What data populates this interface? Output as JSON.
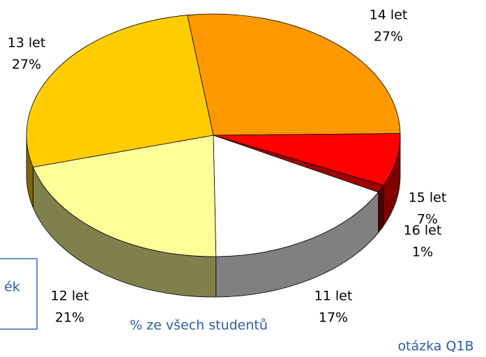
{
  "chart_data": {
    "type": "pie3d",
    "subtitle": "% ze všech studentů",
    "footnote": "otázka Q1B",
    "box_text": "ék",
    "categories": [
      "14 let",
      "15 let",
      "16 let",
      "11 let",
      "12 let",
      "13 let"
    ],
    "values": [
      27,
      7,
      1,
      17,
      21,
      27
    ],
    "value_labels": [
      "27%",
      "7%",
      "1%",
      "17%",
      "21%",
      "27%"
    ],
    "colors": [
      "#ff9900",
      "#ff0000",
      "#a00000",
      "#ffffff",
      "#ffff99",
      "#ffcc00"
    ]
  }
}
